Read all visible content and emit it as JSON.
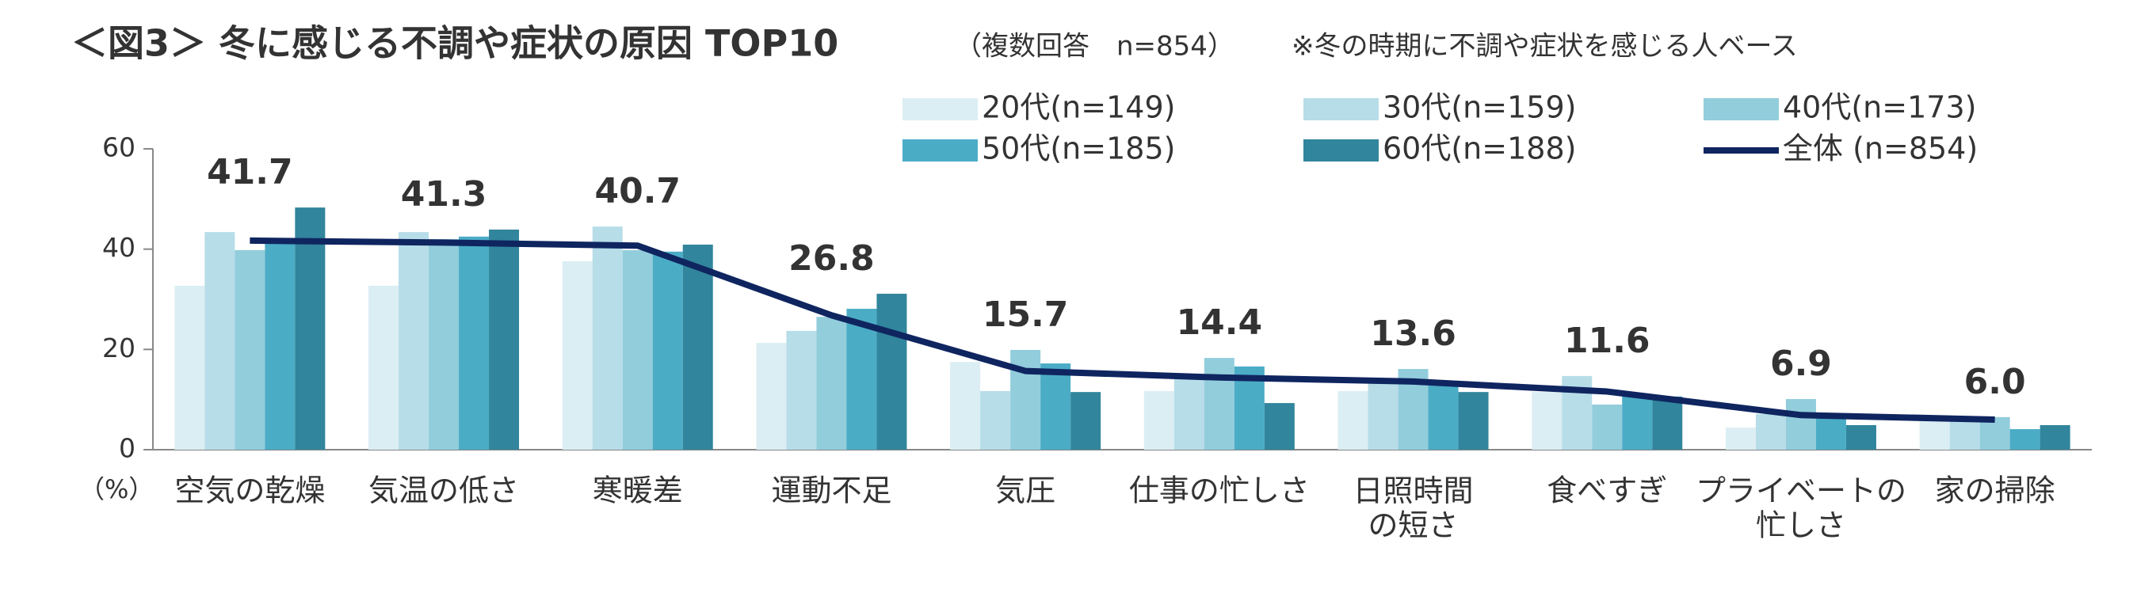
{
  "chart_data": {
    "type": "bar",
    "title": "＜図3＞ 冬に感じる不調や症状の原因 TOP10",
    "subtitle": "（複数回答　n=854）",
    "note": "※冬の時期に不調や症状を感じる人ベース",
    "y_unit": "（%）",
    "categories": [
      "空気の乾燥",
      "気温の低さ",
      "寒暖差",
      "運動不足",
      "気圧",
      "仕事の忙しさ",
      "日照時間\nの短さ",
      "食べすぎ",
      "プライベートの\n忙しさ",
      "家の掃除"
    ],
    "series": [
      {
        "name": "20代(n=149)",
        "color": "#dbeef3",
        "values": [
          32.7,
          32.7,
          37.6,
          21.3,
          17.5,
          11.7,
          11.7,
          11.5,
          4.4,
          5.7
        ]
      },
      {
        "name": "30代(n=159)",
        "color": "#b7dde8",
        "values": [
          43.4,
          43.4,
          44.5,
          23.7,
          11.7,
          14.7,
          13.9,
          14.7,
          7.1,
          5.7
        ]
      },
      {
        "name": "40代(n=173)",
        "color": "#92cddc",
        "values": [
          39.8,
          42.0,
          39.8,
          26.5,
          19.9,
          18.3,
          16.1,
          9.0,
          10.1,
          6.5
        ]
      },
      {
        "name": "50代(n=185)",
        "color": "#4bacc6",
        "values": [
          41.7,
          42.5,
          39.5,
          28.1,
          17.2,
          16.6,
          12.8,
          10.6,
          6.3,
          4.1
        ]
      },
      {
        "name": "60代(n=188)",
        "color": "#31859c",
        "values": [
          48.3,
          43.9,
          40.9,
          31.1,
          11.5,
          9.3,
          11.5,
          10.6,
          4.9,
          4.9
        ]
      },
      {
        "name": "全体 (n=854)",
        "color": "#0f2560",
        "type": "line",
        "values": [
          41.7,
          41.3,
          40.7,
          26.8,
          15.7,
          14.4,
          13.6,
          11.6,
          6.9,
          6.0
        ],
        "value_labels": [
          "41.7",
          "41.3",
          "40.7",
          "26.8",
          "15.7",
          "14.4",
          "13.6",
          "11.6",
          "6.9",
          "6.0"
        ]
      }
    ],
    "ylim": [
      0,
      60
    ],
    "yticks": [
      0,
      20,
      40,
      60
    ]
  }
}
